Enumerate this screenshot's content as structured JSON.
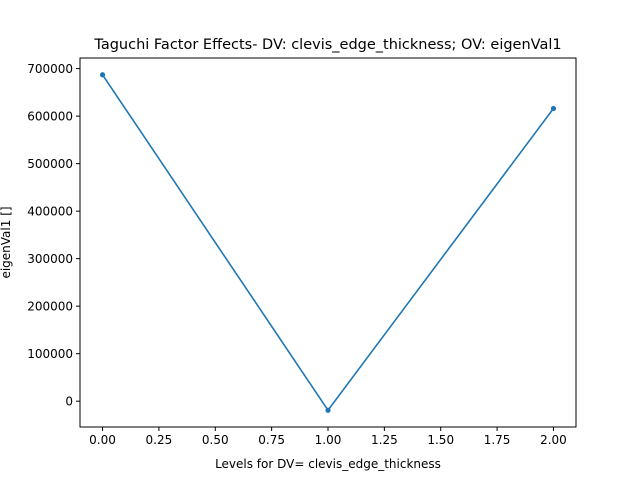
{
  "chart_data": {
    "type": "line",
    "title": "Taguchi Factor Effects- DV: clevis_edge_thickness; OV: eigenVal1",
    "xlabel": "Levels for DV= clevis_edge_thickness",
    "ylabel": "eigenVal1 []",
    "x": [
      0,
      1,
      2
    ],
    "series": [
      {
        "values": [
          687000,
          -19000,
          616000
        ],
        "color": "#1f77b4",
        "marker": "dot"
      }
    ],
    "xlim": [
      -0.1,
      2.1
    ],
    "ylim": [
      -54300,
      722300
    ],
    "xticks": [
      0.0,
      0.25,
      0.5,
      0.75,
      1.0,
      1.25,
      1.5,
      1.75,
      2.0
    ],
    "xtick_labels": [
      "0.00",
      "0.25",
      "0.50",
      "0.75",
      "1.00",
      "1.25",
      "1.50",
      "1.75",
      "2.00"
    ],
    "yticks": [
      0,
      100000,
      200000,
      300000,
      400000,
      500000,
      600000,
      700000
    ],
    "ytick_labels": [
      "0",
      "100000",
      "200000",
      "300000",
      "400000",
      "500000",
      "600000",
      "700000"
    ],
    "grid": false,
    "legend": false
  }
}
